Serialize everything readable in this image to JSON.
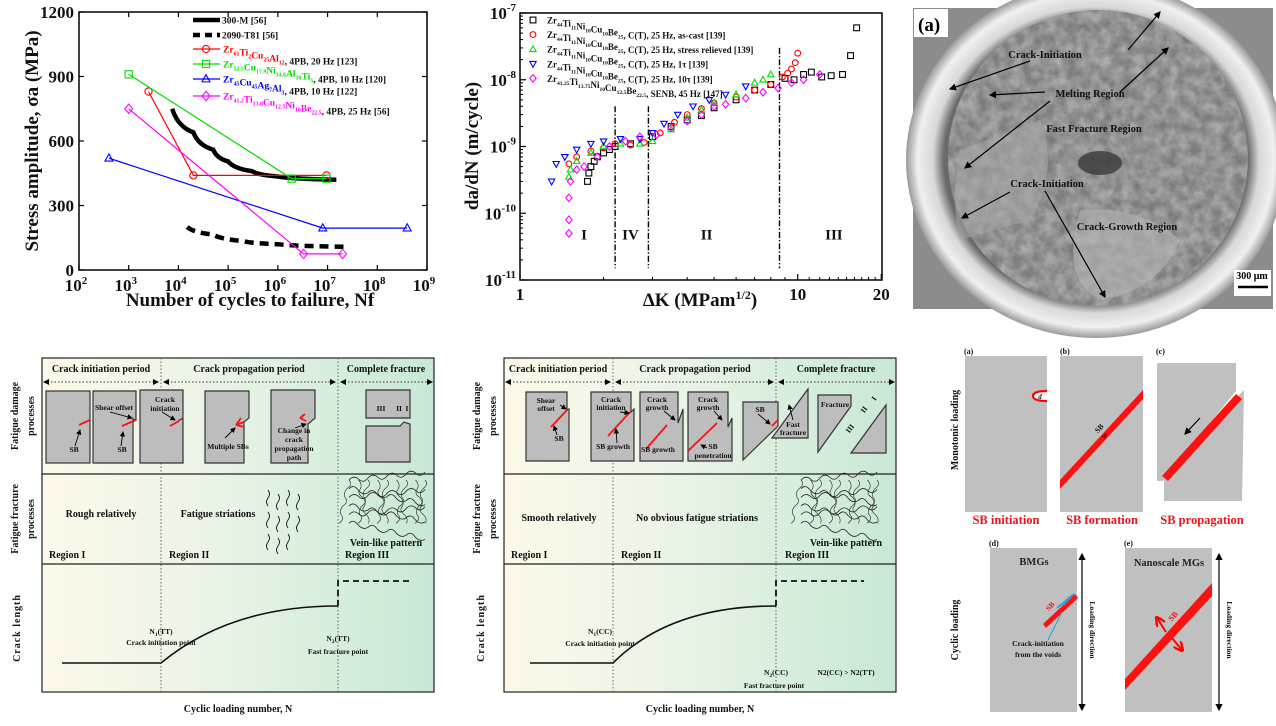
{
  "colors": {
    "red": "#ff0000",
    "green": "#00dd00",
    "blue": "#0000ff",
    "magenta": "#ff00ff",
    "black": "#000000",
    "sb_red": "#ff1010",
    "void_blue": "#1aa0e8"
  },
  "chart_data": [
    {
      "type": "line",
      "xlabel": "Number of cycles to failure, Nf",
      "ylabel": "Stress amplitude, σa (MPa)",
      "xscale": "log",
      "xlim": [
        100,
        1000000000
      ],
      "ylim": [
        0,
        1200
      ],
      "yticks": [
        "0",
        "300",
        "600",
        "900",
        "1200"
      ],
      "xticks": [
        {
          "base": "10",
          "exp": "2"
        },
        {
          "base": "10",
          "exp": "3"
        },
        {
          "base": "10",
          "exp": "4"
        },
        {
          "base": "10",
          "exp": "5"
        },
        {
          "base": "10",
          "exp": "6"
        },
        {
          "base": "10",
          "exp": "7"
        },
        {
          "base": "10",
          "exp": "8"
        },
        {
          "base": "10",
          "exp": "9"
        }
      ],
      "legend_position": "top-right",
      "series": [
        {
          "name": "300-M [56]",
          "formula": [],
          "suffix": "300-M [56]",
          "color": "#000000",
          "style": "thick-solid",
          "marker": "none",
          "x": [
            7500,
            20000,
            50000,
            100000,
            300000,
            1000000,
            15000000
          ],
          "y": [
            750,
            640,
            560,
            505,
            460,
            435,
            420
          ]
        },
        {
          "name": "2090-T81 [56]",
          "formula": [],
          "suffix": "2090-T81 [56]",
          "color": "#000000",
          "style": "thick-dash",
          "marker": "none",
          "x": [
            15000,
            50000,
            200000,
            1000000,
            25000000
          ],
          "y": [
            200,
            165,
            135,
            120,
            108
          ]
        },
        {
          "name": "Zr61Ti2Cu25Al12, 4PB, 20 Hz [123]",
          "formula": [
            [
              "Zr",
              "61"
            ],
            [
              "Ti",
              "2"
            ],
            [
              "Cu",
              "25"
            ],
            [
              "Al",
              "12"
            ]
          ],
          "suffix": ", 4PB, 20 Hz [123]",
          "color": "#ff0000",
          "style": "solid",
          "marker": "circle",
          "x": [
            2500,
            20000,
            9500000
          ],
          "y": [
            830,
            440,
            440
          ]
        },
        {
          "name": "Zr52.5Cu17.9Ni14.6Al10Ti5, 4PB, 10 Hz [120]",
          "formula": [
            [
              "Zr",
              "52.5"
            ],
            [
              "Cu",
              "17.9"
            ],
            [
              "Ni",
              "14.6"
            ],
            [
              "Al",
              "10"
            ],
            [
              "Ti",
              "5"
            ]
          ],
          "suffix": ", 4PB, 10 Hz [120]",
          "color": "#00dd00",
          "style": "solid",
          "marker": "square",
          "x": [
            1000,
            1900000,
            9500000
          ],
          "y": [
            910,
            425,
            425
          ]
        },
        {
          "name": "Zr45Cu45Ag7Al3, 4PB, 10 Hz [122]",
          "formula": [
            [
              "Zr",
              "45"
            ],
            [
              "Cu",
              "45"
            ],
            [
              "Ag",
              "7"
            ],
            [
              "Al",
              "3"
            ]
          ],
          "suffix": ", 4PB, 10 Hz [122]",
          "color": "#0000ff",
          "style": "solid",
          "marker": "triangle-up",
          "x": [
            400,
            8000000,
            400000000
          ],
          "y": [
            520,
            195,
            195
          ]
        },
        {
          "name": "Zr41.2Ti13.8Cu12.5Ni10Be22.5, 4PB, 25 Hz [56]",
          "formula": [
            [
              "Zr",
              "41.2"
            ],
            [
              "Ti",
              "13.8"
            ],
            [
              "Cu",
              "12.5"
            ],
            [
              "Ni",
              "10"
            ],
            [
              "Be",
              "22.5"
            ]
          ],
          "suffix": ", 4PB, 25 Hz [56]",
          "color": "#ff00ff",
          "style": "solid",
          "marker": "diamond",
          "x": [
            1000,
            3300000,
            20000000
          ],
          "y": [
            750,
            75,
            75
          ]
        }
      ]
    },
    {
      "type": "scatter",
      "xlabel": "ΔK (MPam",
      "xlabel_exp": "1/2",
      "xlabel_end": ")",
      "ylabel": "da/dN (m/cycle)",
      "xscale": "log",
      "yscale": "log",
      "xlim": [
        1,
        20
      ],
      "ylim": [
        1e-11,
        1e-07
      ],
      "xticks": [
        {
          "v": 1,
          "label": "1"
        },
        {
          "v": 10,
          "label": "10"
        },
        {
          "v": 20,
          "label": "20"
        }
      ],
      "yticks": [
        {
          "v": -7,
          "base": "10",
          "exp": "-7"
        },
        {
          "v": -8,
          "base": "10",
          "exp": "-8"
        },
        {
          "v": -9,
          "base": "10",
          "exp": "-9"
        },
        {
          "v": -10,
          "base": "10",
          "exp": "-10"
        },
        {
          "v": -11,
          "base": "10",
          "exp": "-11"
        }
      ],
      "legend_position": "top-left",
      "region_boundaries": [
        2.2,
        2.9,
        8.6
      ],
      "regions": [
        {
          "label": "I",
          "x": 1.7
        },
        {
          "label": "IV",
          "x": 2.5
        },
        {
          "label": "II",
          "x": 4.7
        },
        {
          "label": "III",
          "x": 13.5
        }
      ],
      "region_label_y": 5e-11,
      "series": [
        {
          "name": "Zr44Ti11Ni10Cu10Be25, C(T), 25 Hz, as-cast [139]",
          "formula": [
            [
              "Zr",
              "44"
            ],
            [
              "Ti",
              "11"
            ],
            [
              "Ni",
              "10"
            ],
            [
              "Cu",
              "10"
            ],
            [
              "Be",
              "25"
            ]
          ],
          "suffix": ", C(T), 25 Hz, as-cast [139]",
          "color": "#000000",
          "marker": "square",
          "x": [
            1.75,
            1.77,
            1.8,
            1.85,
            1.9,
            2.0,
            2.1,
            2.2,
            2.5,
            3.0,
            3.5,
            4.0,
            4.5,
            5.0,
            6.0,
            7.0,
            8.0,
            9.0,
            9.7,
            10.5,
            11.2,
            12.2,
            13.2,
            14.5,
            15.5,
            16.3
          ],
          "y": [
            3e-10,
            4e-10,
            5e-10,
            6e-10,
            7e-10,
            8e-10,
            9e-10,
            1e-09,
            1.1e-09,
            1.4e-09,
            2e-09,
            2.5e-09,
            2.9e-09,
            3.8e-09,
            5e-09,
            7e-09,
            8.5e-09,
            1.05e-08,
            1e-08,
            1.2e-08,
            1.3e-08,
            1.1e-08,
            1.15e-08,
            1.2e-08,
            2.3e-08,
            6e-08
          ]
        },
        {
          "name": "Zr44Ti11Ni10Cu10Be25, C(T), 25 Hz, stress relieved [139]",
          "formula": [
            [
              "Zr",
              "44"
            ],
            [
              "Ti",
              "11"
            ],
            [
              "Ni",
              "10"
            ],
            [
              "Cu",
              "10"
            ],
            [
              "Be",
              "25"
            ]
          ],
          "suffix": ", C(T), 25 Hz, stress relieved [139]",
          "color": "#ff0000",
          "marker": "circle",
          "x": [
            1.5,
            1.6,
            1.8,
            2.0,
            2.2,
            2.5,
            2.8,
            3.2,
            3.6,
            4.0,
            4.5,
            5.0,
            6.0,
            7.0,
            8.0,
            8.8,
            9.2,
            9.5,
            9.8,
            10.0
          ],
          "y": [
            5.5e-10,
            7e-10,
            8.5e-10,
            9.5e-10,
            1.1e-09,
            1.05e-09,
            1.15e-09,
            1.6e-09,
            2.3e-09,
            3e-09,
            3.7e-09,
            4.5e-09,
            5.5e-09,
            7e-09,
            8.5e-09,
            1.1e-08,
            1.25e-08,
            1.45e-08,
            1.8e-08,
            2.5e-08
          ]
        },
        {
          "name": "Zr44Ti11Ni10Cu10Be25, C(T), 25 Hz, 1τ [139]",
          "formula": [
            [
              "Zr",
              "44"
            ],
            [
              "Ti",
              "11"
            ],
            [
              "Ni",
              "10"
            ],
            [
              "Cu",
              "10"
            ],
            [
              "Be",
              "25"
            ]
          ],
          "suffix": ", C(T), 25 Hz, 1τ [139]",
          "color": "#00dd00",
          "marker": "triangle-up",
          "x": [
            1.5,
            1.52,
            1.6,
            1.8,
            2.0,
            2.3,
            2.7,
            3.0,
            3.5,
            4.0,
            4.5,
            5.0,
            6.0,
            7.0,
            7.5,
            8.0
          ],
          "y": [
            3.5e-10,
            4.5e-10,
            6e-10,
            8e-10,
            1e-09,
            1.1e-09,
            1.1e-09,
            1.2e-09,
            1.8e-09,
            2.7e-09,
            3.5e-09,
            4.5e-09,
            6e-09,
            9e-09,
            1e-08,
            1.2e-08
          ]
        },
        {
          "name": "Zr44Ti11Ni10Cu10Be25, C(T), 25 Hz, 10τ [139]",
          "formula": [
            [
              "Zr",
              "44"
            ],
            [
              "Ti",
              "11"
            ],
            [
              "Ni",
              "10"
            ],
            [
              "Cu",
              "10"
            ],
            [
              "Be",
              "25"
            ]
          ],
          "suffix": ", C(T), 25 Hz, 10τ  [139]",
          "color": "#0000ff",
          "marker": "triangle-down",
          "x": [
            1.3,
            1.35,
            1.45,
            1.6,
            1.8,
            2.0,
            2.3,
            2.7,
            3.0,
            3.3,
            3.7,
            4.2,
            4.8,
            5.5,
            6.5
          ],
          "y": [
            3e-10,
            5.5e-10,
            7e-10,
            9e-10,
            1.1e-09,
            1.2e-09,
            1.3e-09,
            1.3e-09,
            1.6e-09,
            2.2e-09,
            3e-09,
            4e-09,
            5e-09,
            6e-09,
            8e-09
          ]
        },
        {
          "name": "Zr41.25Ti13.75Ni10Cu12.5Be22.5, SENB, 45 Hz [147]",
          "formula": [
            [
              "Zr",
              "41.25"
            ],
            [
              "Ti",
              "13.75"
            ],
            [
              "Ni",
              "10"
            ],
            [
              "Cu",
              "12.5"
            ],
            [
              "Be",
              "22.5"
            ]
          ],
          "suffix": ", SENB, 45 Hz [147]",
          "color": "#ff00ff",
          "marker": "diamond",
          "x": [
            1.5,
            1.5,
            1.5,
            1.52,
            1.6,
            1.7,
            1.9,
            2.1,
            2.4,
            2.7,
            3.1,
            3.5,
            4.0,
            4.5,
            5.0,
            5.5,
            6.5,
            7.5,
            8.5,
            9.5,
            10.5,
            12.0
          ],
          "y": [
            5e-11,
            8e-11,
            1.7e-10,
            3e-10,
            4.5e-10,
            5e-10,
            7e-10,
            1e-09,
            1.2e-09,
            1.4e-09,
            1.5e-09,
            1.9e-09,
            2.4e-09,
            3e-09,
            4e-09,
            4.3e-09,
            5.3e-09,
            6.5e-09,
            7.5e-09,
            9e-09,
            1e-08,
            1.2e-08
          ]
        }
      ]
    }
  ],
  "photo": {
    "panel_label": "(a)",
    "labels": [
      "Crack-Initiation",
      "Melting Region",
      "Fast Fracture Region",
      "Crack-Initiation",
      "Crack-Growth Region"
    ],
    "scale_bar": "300 μm"
  },
  "diagram_common": {
    "row_labels": {
      "damage_1": "Fatigue damage",
      "damage_2": "processes",
      "fracture_1": "Fatigue fracture",
      "fracture_2": "processes",
      "crack": "Crack length"
    },
    "periods": [
      "Crack initiation period",
      "Crack propagation period",
      "Complete fracture"
    ],
    "regions": [
      "Region I",
      "Region II",
      "Region III"
    ],
    "vein": "Vein-like pattern",
    "xlabel": "Cyclic loading number, N",
    "frac_marks": [
      "III",
      "II",
      "I"
    ]
  },
  "diagram_tt": {
    "sb": "SB",
    "shear_offset": "Shear offset",
    "sb2": "SB",
    "crack_init": [
      "Crack",
      "initiation"
    ],
    "multiple_sbs": "Multiple SBs",
    "change": [
      "Change in",
      "crack",
      "propagation",
      "path"
    ],
    "surface_1": "Rough relatively",
    "surface_2": "Fatigue striations",
    "n1": "N1(TT)",
    "n1_base": "N",
    "n1_sub": "1",
    "n1_rest": "(TT)",
    "n1_desc": "Crack initiation point",
    "n2_base": "N",
    "n2_sub": "2",
    "n2_rest": "(TT)",
    "n2_desc": "Fast fracture point"
  },
  "diagram_cc": {
    "shear_offset": [
      "Shear",
      "offset"
    ],
    "sb": "SB",
    "crack_init": [
      "Crack",
      "initiation"
    ],
    "sb_growth": "SB growth",
    "crack_growth": [
      "Crack",
      "growth"
    ],
    "sb_growth2": "SB growth",
    "crack_growth2": [
      "Crack",
      "growth"
    ],
    "sb_pen": [
      "SB",
      "penetration"
    ],
    "sb3": "SB",
    "fast_fracture": [
      "Fast",
      "fracture"
    ],
    "fracture": "Fracture",
    "surface_1": "Smooth relatively",
    "surface_2": "No obvious fatigue striations",
    "n1_base": "N",
    "n1_sub": "1",
    "n1_rest": "(CC)",
    "n1_desc": "Crack initiation point",
    "n2_base": "N",
    "n2_sub": "2",
    "n2_rest": "(CC)",
    "compare": "N2(CC) > N2(TT)",
    "n2_desc": "Fast fracture point"
  },
  "sb_panels": {
    "monotonic": "Monotonic loading",
    "cyclic": "Cyclic  loading",
    "labels": [
      "(a)",
      "(b)",
      "(c)",
      "(d)",
      "(e)"
    ],
    "captions": [
      "SB initiation",
      "SB formation",
      "SB propagation"
    ],
    "d_symbol": "d",
    "w_symbol": "w",
    "sb": "SB",
    "bmgs": "BMGs",
    "nano": "Nanoscale MGs",
    "voids": "Voids",
    "crack_voids": [
      "Crack-initiation",
      "from the voids"
    ],
    "loading_direction": "Loading direction"
  }
}
